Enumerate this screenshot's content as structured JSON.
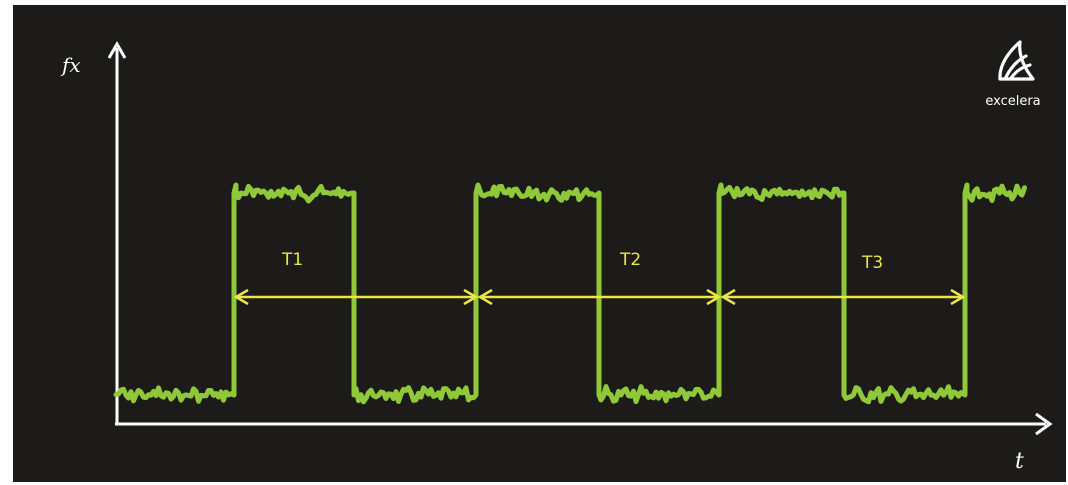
{
  "diagram": {
    "y_axis_label": "fx",
    "x_axis_label": "t",
    "periods": [
      {
        "label": "T1"
      },
      {
        "label": "T2"
      },
      {
        "label": "T3"
      }
    ]
  },
  "logo": {
    "text": "excelera"
  },
  "colors": {
    "background": "#1d1a1a",
    "signal": "#8fc93a",
    "arrows": "#e8e64a",
    "axes": "#ffffff"
  },
  "icons": [
    "excelera-logo-icon"
  ]
}
